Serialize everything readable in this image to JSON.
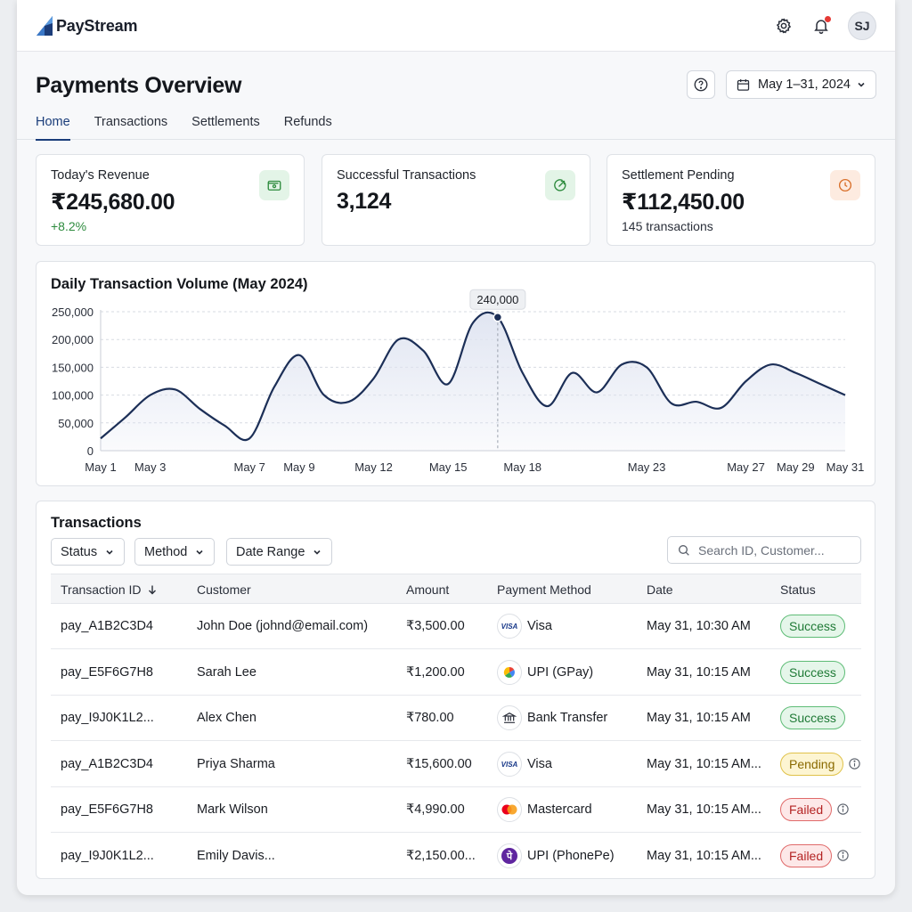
{
  "app": {
    "brand": "PayStream",
    "user_initials": "SJ"
  },
  "header": {
    "title": "Payments Overview",
    "date_range": "May 1–31, 2024",
    "tabs": [
      {
        "label": "Home",
        "active": true
      },
      {
        "label": "Transactions",
        "active": false
      },
      {
        "label": "Settlements",
        "active": false
      },
      {
        "label": "Refunds",
        "active": false
      }
    ]
  },
  "kpis": [
    {
      "label": "Today's Revenue",
      "value": "₹245,680.00",
      "sub": "+8.2%",
      "icon": "wallet-icon",
      "icon_bg": "#e3f4e7",
      "icon_color": "#2e8b3e"
    },
    {
      "label": "Successful Transactions",
      "value": "3,124",
      "sub": "",
      "icon": "arrow-up-circle-icon",
      "icon_bg": "#e3f4e7",
      "icon_color": "#2e8b3e"
    },
    {
      "label": "Settlement Pending",
      "value": "₹112,450.00",
      "sub": "145 transactions",
      "icon": "clock-icon",
      "icon_bg": "#fdebe0",
      "icon_color": "#d9702b"
    }
  ],
  "chart_data": {
    "type": "line",
    "title": "Daily Transaction Volume (May 2024)",
    "xlabel": "",
    "ylabel": "",
    "ylim": [
      0,
      250000
    ],
    "y_ticks": [
      "250,000",
      "200,000",
      "150,000",
      "100,000",
      "50,000",
      "0"
    ],
    "x_ticks": [
      "May 1",
      "May 3",
      "May 7",
      "May 9",
      "May 12",
      "May 15",
      "May 18",
      "May 23",
      "May 27",
      "May 29",
      "May 31"
    ],
    "grid": true,
    "series": [
      {
        "x": [
          1,
          2,
          3,
          4,
          5,
          6,
          7,
          8,
          9,
          10,
          11,
          12,
          13,
          14,
          15,
          16,
          17,
          18,
          19,
          20,
          21,
          22,
          23,
          24,
          25,
          26,
          27,
          28,
          29,
          30,
          31
        ],
        "values": [
          22000,
          60000,
          100000,
          110000,
          75000,
          45000,
          22000,
          115000,
          172000,
          100000,
          88000,
          130000,
          200000,
          180000,
          120000,
          230000,
          240000,
          140000,
          80000,
          140000,
          105000,
          155000,
          150000,
          85000,
          88000,
          77000,
          125000,
          155000,
          140000,
          120000,
          100000
        ]
      }
    ],
    "highlight": {
      "x": 17,
      "label": "240,000"
    },
    "line_color": "#1c2f57",
    "fill_color": "#dfe4f1"
  },
  "transactions": {
    "title": "Transactions",
    "filters": [
      "Status",
      "Method",
      "Date Range"
    ],
    "search_placeholder": "Search ID, Customer...",
    "columns": [
      "Transaction ID",
      "Customer",
      "Amount",
      "Payment Method",
      "Date",
      "Status"
    ],
    "rows": [
      {
        "id": "pay_A1B2C3D4",
        "customer": "John Doe (johnd@email.com)",
        "amount": "₹3,500.00",
        "method": "Visa",
        "method_icon": "visa-icon",
        "date": "May 31, 10:30 AM",
        "status": "Success",
        "status_type": "success",
        "info": false
      },
      {
        "id": "pay_E5F6G7H8",
        "customer": "Sarah Lee",
        "amount": "₹1,200.00",
        "method": "UPI (GPay)",
        "method_icon": "gpay-icon",
        "date": "May 31, 10:15 AM",
        "status": "Success",
        "status_type": "success",
        "info": false
      },
      {
        "id": "pay_I9J0K1L2...",
        "customer": "Alex Chen",
        "amount": "₹780.00",
        "method": "Bank Transfer",
        "method_icon": "bank-icon",
        "date": "May 31, 10:15 AM",
        "status": "Success",
        "status_type": "success",
        "info": false
      },
      {
        "id": "pay_A1B2C3D4",
        "customer": "Priya Sharma",
        "amount": "₹15,600.00",
        "method": "Visa",
        "method_icon": "visa-icon",
        "date": "May 31, 10:15 AM...",
        "status": "Pending",
        "status_type": "pending",
        "info": true
      },
      {
        "id": "pay_E5F6G7H8",
        "customer": "Mark Wilson",
        "amount": "₹4,990.00",
        "method": "Mastercard",
        "method_icon": "mastercard-icon",
        "date": "May 31, 10:15 AM...",
        "status": "Failed",
        "status_type": "failed",
        "info": true
      },
      {
        "id": "pay_I9J0K1L2...",
        "customer": "Emily Davis...",
        "amount": "₹2,150.00...",
        "method": "UPI (PhonePe)",
        "method_icon": "phonepe-icon",
        "date": "May 31, 10:15 AM...",
        "status": "Failed",
        "status_type": "failed",
        "info": true
      }
    ]
  },
  "colors": {
    "accent": "#1a3d7a",
    "success": "#2e8b3e",
    "pending": "#e0c24a",
    "failed": "#e06a6a"
  }
}
